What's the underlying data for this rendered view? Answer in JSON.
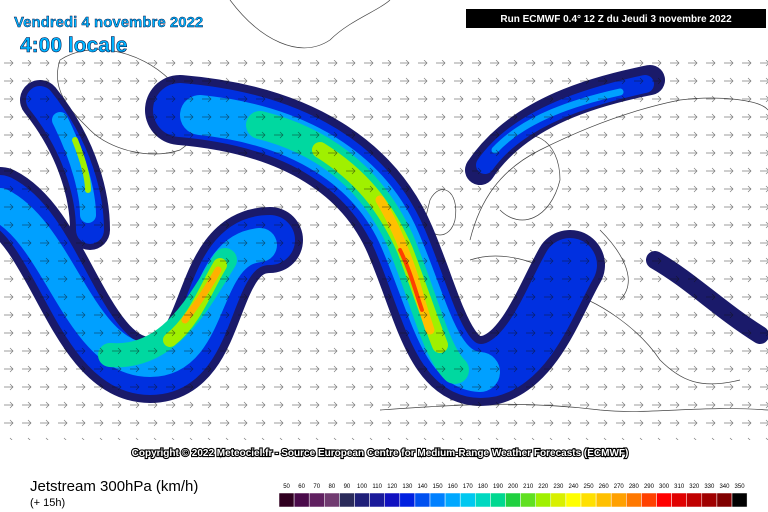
{
  "header": {
    "date": "Vendredi 4 novembre 2022",
    "time": "4:00 locale",
    "run": "Run ECMWF 0.4° 12 Z du Jeudi 3 novembre 2022"
  },
  "copyright": "Copyright © 2022 Meteociel.fr - Source European Centre for Medium-Range Weather Forecasts (ECMWF)",
  "footer": {
    "title": "Jetstream 300hPa (km/h)",
    "step": "(+ 15h)"
  },
  "legend": {
    "labels": [
      50,
      60,
      70,
      80,
      90,
      100,
      110,
      120,
      130,
      140,
      150,
      160,
      170,
      180,
      190,
      200,
      210,
      220,
      230,
      240,
      250,
      260,
      270,
      280,
      290,
      300,
      310,
      320,
      330,
      340,
      350
    ],
    "colors": [
      "#300020",
      "#4a0a4a",
      "#602060",
      "#703a70",
      "#2a2a5a",
      "#1e1e78",
      "#1a1a9a",
      "#1010c0",
      "#0020e0",
      "#0050f0",
      "#0080ff",
      "#00a8ff",
      "#00c8f0",
      "#00d8c0",
      "#00d890",
      "#20d040",
      "#60e020",
      "#a0f000",
      "#d8f000",
      "#ffff00",
      "#ffe000",
      "#ffc000",
      "#ffa000",
      "#ff7800",
      "#ff4000",
      "#ff0000",
      "#e00000",
      "#c00000",
      "#a00000",
      "#800000",
      "#000000"
    ]
  }
}
